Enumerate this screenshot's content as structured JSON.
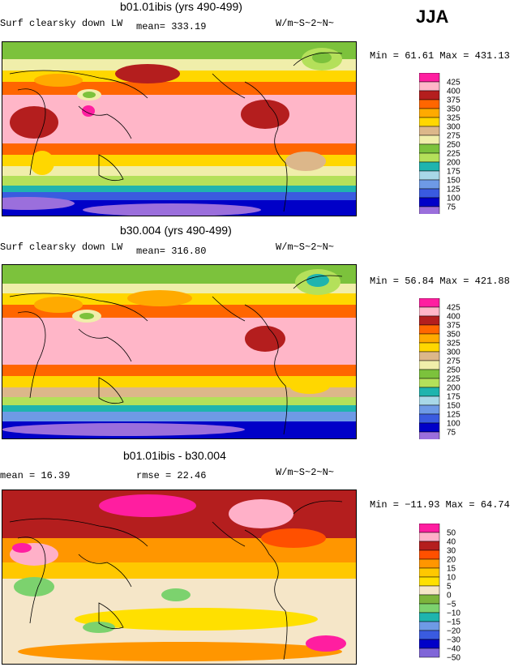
{
  "season": "JJA",
  "colors": {
    "abs_scale": [
      "#9b6fdc",
      "#0000c8",
      "#3a5be0",
      "#6e9ae6",
      "#a8d8e8",
      "#1fb4ae",
      "#b4e05a",
      "#7cc23c",
      "#f0eeaa",
      "#dcb78a",
      "#ffd700",
      "#ffaa00",
      "#ff6600",
      "#b41e1e",
      "#ffb6c8",
      "#ff1ea0"
    ],
    "diff_scale": [
      "#8066d8",
      "#0000c8",
      "#3a5be0",
      "#6e9ae6",
      "#1fb4ae",
      "#7cd26e",
      "#7cb43c",
      "#f5e6c8",
      "#ffe000",
      "#ffc800",
      "#ff9600",
      "#ff5000",
      "#b41e1e",
      "#ffb0c8",
      "#ff1ea0"
    ]
  },
  "panels": [
    {
      "title": "b01.01ibis (yrs 490-499)",
      "variable": "Surf clearsky down LW",
      "stat1": "mean= 333.19",
      "stat2": "",
      "units": "W/m~S~2~N~",
      "minmax": "Min =  61.61 Max = 431.13"
    },
    {
      "title": "b30.004 (yrs 490-499)",
      "variable": "Surf clearsky down LW",
      "stat1": "mean= 316.80",
      "stat2": "",
      "units": "W/m~S~2~N~",
      "minmax": "Min =  56.84 Max = 421.88"
    },
    {
      "title": "b01.01ibis - b30.004",
      "variable": "",
      "stat1": "mean =  16.39",
      "stat2": "rmse =  22.46",
      "units": "W/m~S~2~N~",
      "minmax": "Min = −11.93 Max =  64.74"
    }
  ],
  "chart_data": [
    {
      "type": "heatmap",
      "title": "b01.01ibis (yrs 490-499)",
      "subtitle": "Surf clearsky down LW",
      "mean": 333.19,
      "min": 61.61,
      "max": 431.13,
      "units": "W/m~S~2~N~",
      "legend_levels": [
        425,
        400,
        375,
        350,
        325,
        300,
        275,
        250,
        225,
        200,
        175,
        150,
        125,
        100,
        75
      ]
    },
    {
      "type": "heatmap",
      "title": "b30.004 (yrs 490-499)",
      "subtitle": "Surf clearsky down LW",
      "mean": 316.8,
      "min": 56.84,
      "max": 421.88,
      "units": "W/m~S~2~N~",
      "legend_levels": [
        425,
        400,
        375,
        350,
        325,
        300,
        275,
        250,
        225,
        200,
        175,
        150,
        125,
        100,
        75
      ]
    },
    {
      "type": "heatmap",
      "title": "b01.01ibis - b30.004",
      "mean": 16.39,
      "rmse": 22.46,
      "min": -11.93,
      "max": 64.74,
      "units": "W/m~S~2~N~",
      "legend_levels": [
        "50",
        "40",
        "30",
        "20",
        "15",
        "10",
        "5",
        "0",
        "−5",
        "−10",
        "−15",
        "−20",
        "−30",
        "−40",
        "−50"
      ]
    }
  ]
}
